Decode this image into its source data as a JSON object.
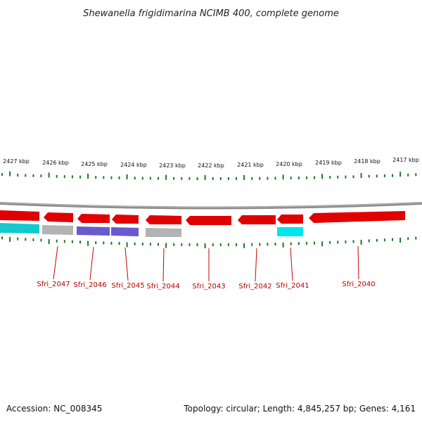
{
  "header": {
    "title": "Shewanella frigidimarina NCIMB 400, complete genome"
  },
  "footer": {
    "accession": "Accession: NC_008345",
    "summary": "Topology: circular; Length: 4,845,257 bp; Genes: 4,161"
  },
  "kbp_labels": [
    "2427 kbp",
    "2426 kbp",
    "2425 kbp",
    "2424 kbp",
    "2423 kbp",
    "2422 kbp",
    "2421 kbp",
    "2420 kbp",
    "2419 kbp",
    "2418 kbp",
    "2417 kbp"
  ],
  "gene_labels": [
    "Sfri_2047",
    "Sfri_2046",
    "Sfri_2045",
    "Sfri_2044",
    "Sfri_2043",
    "Sfri_2042",
    "Sfri_2041",
    "Sfri_2040"
  ],
  "colors": {
    "backbone": "#8c8c8c",
    "cds": "#e00000",
    "tick": "#1a7a1a",
    "label_line": "#cc0000",
    "label_text": "#b00000",
    "cog_cyan": "#12c9cf",
    "cog_gray": "#b3b3b3",
    "cog_purple": "#6a5acd",
    "cog_aqua": "#00e5ee"
  }
}
